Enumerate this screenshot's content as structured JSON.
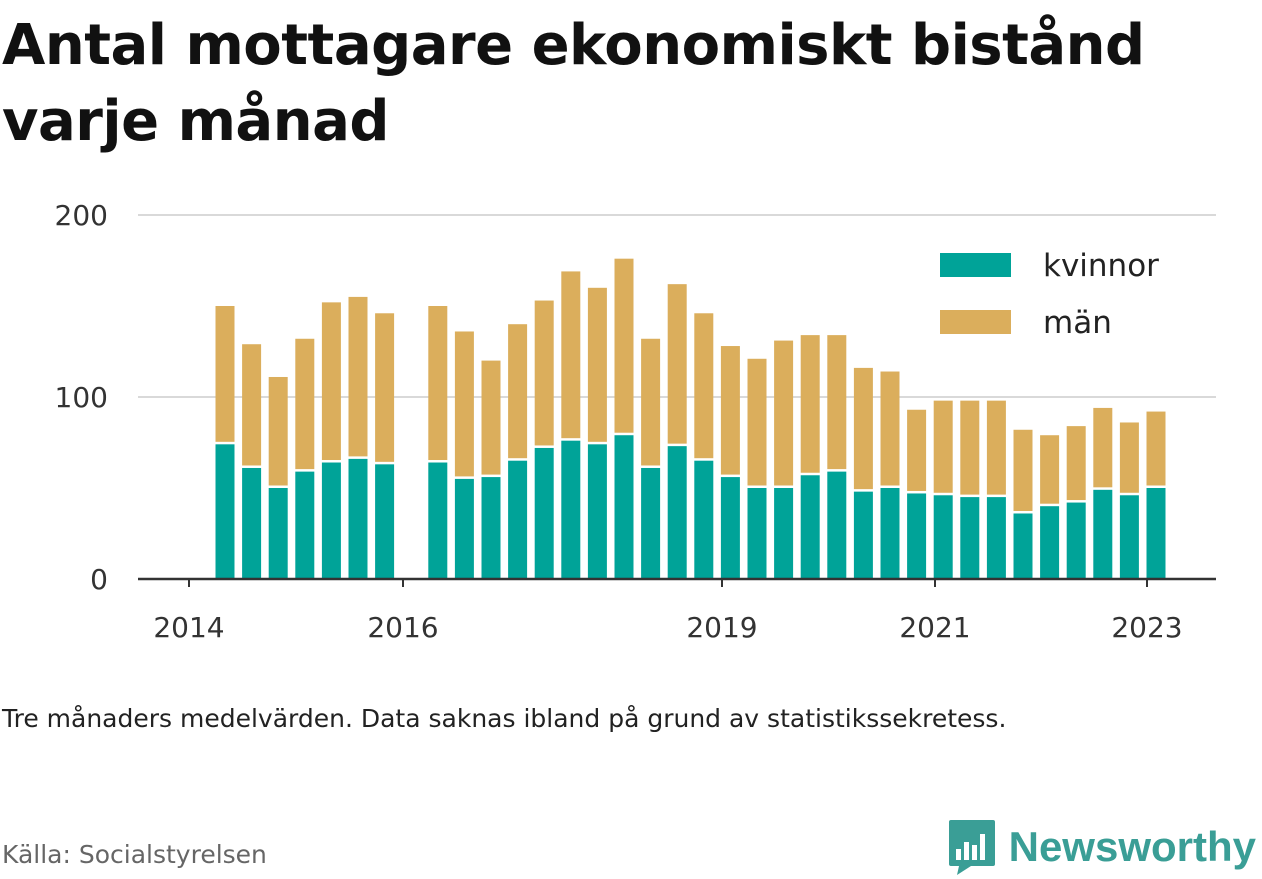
{
  "header": {
    "title": "Antal mottagare ekonomiskt bistånd varje månad"
  },
  "footer": {
    "note": "Tre månaders medelvärden. Data saknas ibland på grund av statistikssekretess.",
    "source": "Källa: Socialstyrelsen",
    "brand": "Newsworthy",
    "brand_color": "#3a9e96"
  },
  "chart_data": {
    "type": "bar",
    "stacked": true,
    "x_ticks": [
      "2014",
      "2016",
      "2019",
      "2021",
      "2023"
    ],
    "y_ticks": [
      0,
      100,
      200
    ],
    "ylim": [
      0,
      200
    ],
    "grid": true,
    "legend_position": "top-right",
    "series": [
      {
        "name": "kvinnor",
        "color": "#00a398",
        "values": [
          74,
          61,
          50,
          59,
          64,
          66,
          63,
          null,
          64,
          55,
          56,
          65,
          72,
          76,
          74,
          79,
          61,
          73,
          65,
          56,
          50,
          50,
          57,
          59,
          48,
          50,
          47,
          46,
          45,
          45,
          36,
          40,
          42,
          49,
          46,
          50
        ]
      },
      {
        "name": "män",
        "color": "#dbae5c",
        "values": [
          76,
          68,
          61,
          73,
          88,
          89,
          83,
          null,
          86,
          81,
          64,
          75,
          81,
          93,
          86,
          97,
          71,
          89,
          81,
          72,
          71,
          81,
          77,
          75,
          68,
          64,
          46,
          52,
          53,
          53,
          46,
          39,
          42,
          45,
          40,
          42
        ]
      }
    ]
  }
}
